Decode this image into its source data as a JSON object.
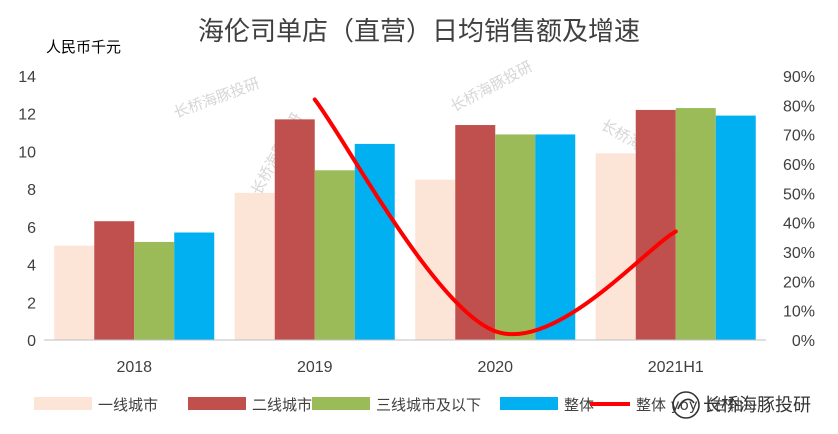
{
  "chart_data": {
    "type": "bar",
    "title": "海伦司单店（直营）日均销售额及增速",
    "ylabel": "人民币千元",
    "categories": [
      "2018",
      "2019",
      "2020",
      "2021H1"
    ],
    "ylim": [
      0,
      14
    ],
    "yticks": [
      0,
      2,
      4,
      6,
      8,
      10,
      12,
      14
    ],
    "y2lim": [
      0,
      90
    ],
    "y2ticks": [
      "0%",
      "10%",
      "20%",
      "30%",
      "40%",
      "50%",
      "60%",
      "70%",
      "80%",
      "90%"
    ],
    "series": [
      {
        "name": "一线城市",
        "type": "bar",
        "color": "#fce4d6",
        "values": [
          5.0,
          7.8,
          8.5,
          9.9
        ]
      },
      {
        "name": "二线城市",
        "type": "bar",
        "color": "#c0504d",
        "values": [
          6.3,
          11.7,
          11.4,
          12.2
        ]
      },
      {
        "name": "三线城市及以下",
        "type": "bar",
        "color": "#9bbb59",
        "values": [
          5.2,
          9.0,
          10.9,
          12.3
        ]
      },
      {
        "name": "整体",
        "type": "bar",
        "color": "#00b0f0",
        "values": [
          5.7,
          10.4,
          10.9,
          11.9
        ]
      },
      {
        "name": "整体 yoy（右轴）",
        "type": "line",
        "axis": "right",
        "color": "#ff0000",
        "values": [
          null,
          82,
          3,
          37
        ]
      }
    ],
    "legend_position": "bottom",
    "grid": false
  },
  "watermark": {
    "texts": [
      "长桥海豚投研",
      "长桥海豚投研",
      "长桥海豚投研",
      "长桥海豚投研"
    ],
    "logo_text": "长桥海豚投研",
    "icon": "dolphin-wechat-icon"
  }
}
